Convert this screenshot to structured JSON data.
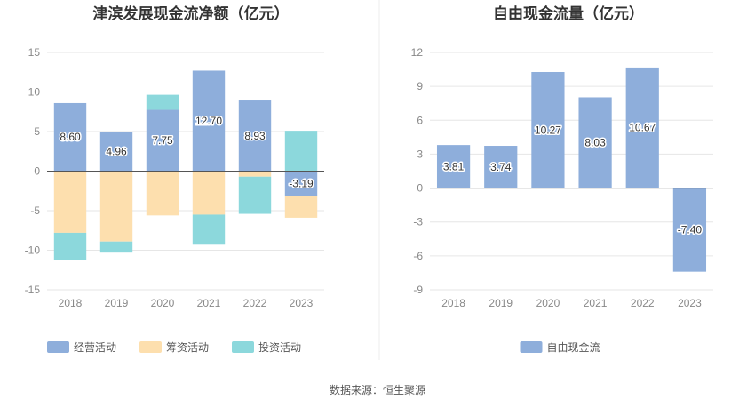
{
  "source": "数据来源：恒生聚源",
  "chart_data": [
    {
      "type": "bar",
      "stacked": true,
      "title": "津滨发展现金流净额（亿元）",
      "categories": [
        "2018",
        "2019",
        "2020",
        "2021",
        "2022",
        "2023"
      ],
      "ylim": [
        -15,
        15
      ],
      "yticks": [
        15,
        10,
        5,
        0,
        -5,
        -10,
        -15
      ],
      "grid": true,
      "legend_position": "bottom",
      "series": [
        {
          "name": "经营活动",
          "color": "#8eaedb",
          "values": [
            8.6,
            4.96,
            7.75,
            12.7,
            8.93,
            -3.19
          ],
          "labels": [
            "8.60",
            "4.96",
            "7.75",
            "12.70",
            "8.93",
            "-3.19"
          ]
        },
        {
          "name": "筹资活动",
          "color": "#fddfae",
          "values": [
            -7.8,
            -8.9,
            -5.6,
            -5.5,
            -0.7,
            -2.7
          ]
        },
        {
          "name": "投资活动",
          "color": "#8cd8dc",
          "values": [
            -3.4,
            -1.4,
            1.9,
            -3.8,
            -4.7,
            5.1
          ]
        }
      ]
    },
    {
      "type": "bar",
      "title": "自由现金流量（亿元）",
      "categories": [
        "2018",
        "2019",
        "2020",
        "2021",
        "2022",
        "2023"
      ],
      "ylim": [
        -9,
        12
      ],
      "yticks": [
        12,
        9,
        6,
        3,
        0,
        -3,
        -6,
        -9
      ],
      "grid": true,
      "legend_position": "bottom",
      "series": [
        {
          "name": "自由现金流",
          "color": "#8eaedb",
          "values": [
            3.81,
            3.74,
            10.27,
            8.03,
            10.67,
            -7.4
          ],
          "labels": [
            "3.81",
            "3.74",
            "10.27",
            "8.03",
            "10.67",
            "-7.40"
          ]
        }
      ]
    }
  ]
}
